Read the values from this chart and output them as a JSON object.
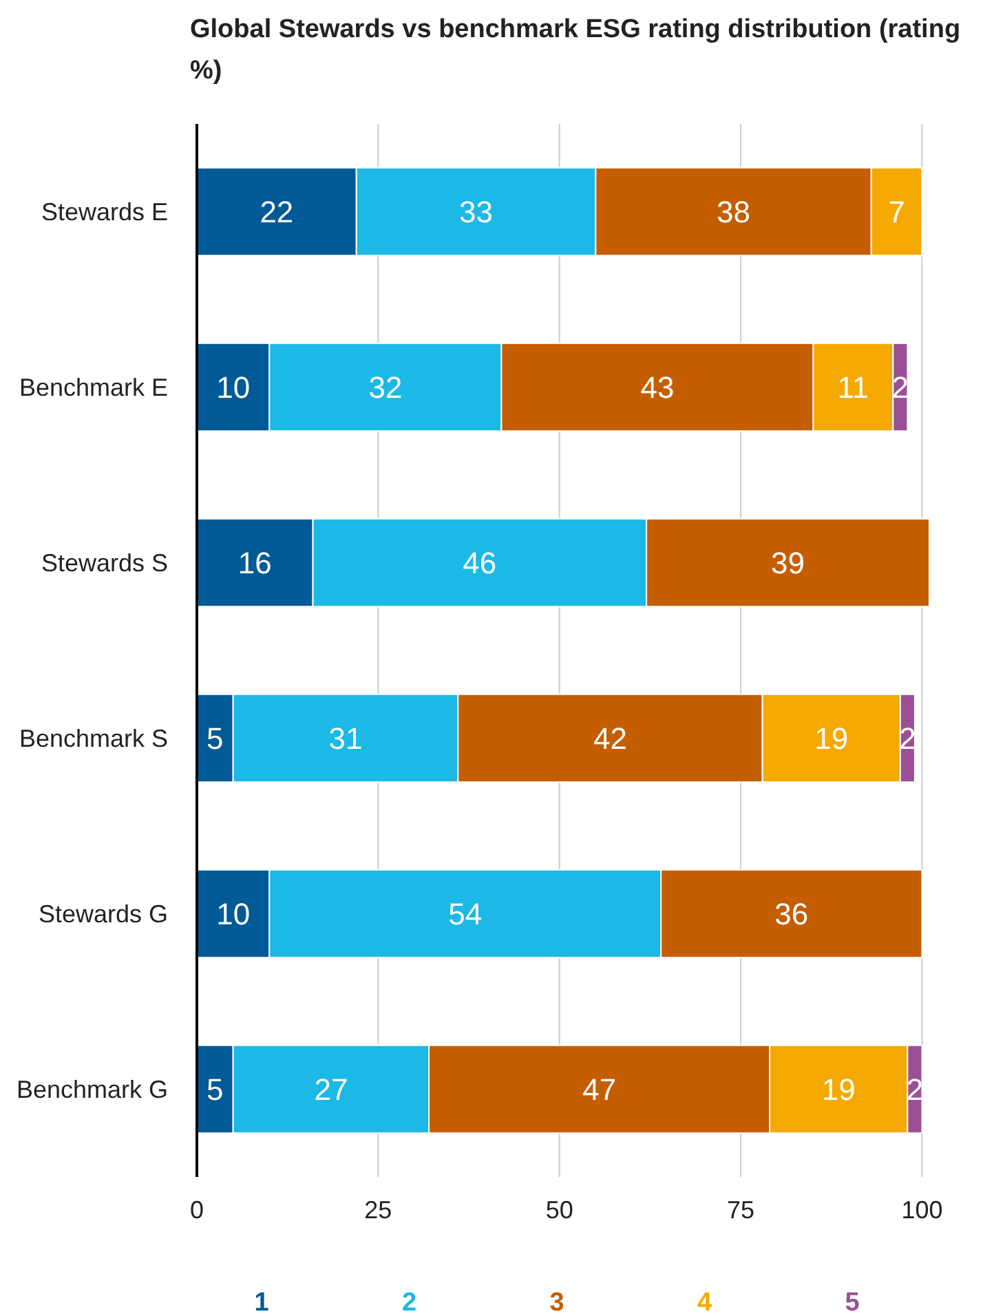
{
  "chart_data": {
    "type": "bar",
    "orientation": "horizontal",
    "stacked": true,
    "title": "Global Stewards vs benchmark ESG rating distribution (rating %)",
    "categories": [
      "Stewards E",
      "Benchmark E",
      "Stewards S",
      "Benchmark S",
      "Stewards G",
      "Benchmark G"
    ],
    "series": [
      {
        "name": "1",
        "color": "#005a96",
        "values": [
          22,
          10,
          16,
          5,
          10,
          5
        ]
      },
      {
        "name": "2",
        "color": "#1cb8e6",
        "values": [
          33,
          32,
          46,
          31,
          54,
          27
        ]
      },
      {
        "name": "3",
        "color": "#c45e00",
        "values": [
          38,
          43,
          39,
          42,
          36,
          47
        ]
      },
      {
        "name": "4",
        "color": "#f5a800",
        "values": [
          7,
          11,
          null,
          19,
          null,
          19
        ]
      },
      {
        "name": "5",
        "color": "#9b4f96",
        "values": [
          null,
          2,
          null,
          2,
          null,
          2
        ]
      }
    ],
    "xlim": [
      0,
      101
    ],
    "xticks": [
      0,
      25,
      50,
      75,
      100
    ],
    "grid": "x",
    "legend": "bottom",
    "data_labels": true
  }
}
